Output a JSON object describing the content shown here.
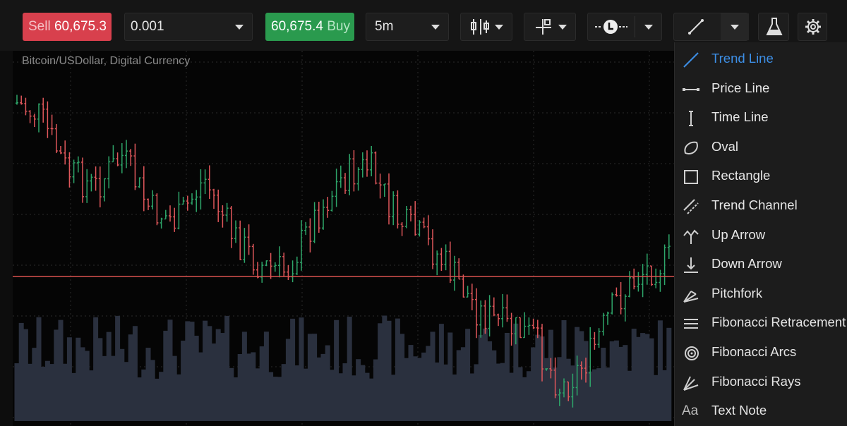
{
  "toolbar": {
    "sell_label": "Sell",
    "sell_price": "60,675.3",
    "quantity": "0.001",
    "buy_price": "60,675.4",
    "buy_label": "Buy",
    "timeframe": "5m"
  },
  "chart": {
    "title": "Bitcoin/USDollar, Digital Currency"
  },
  "menu": {
    "items": [
      {
        "label": "Trend Line",
        "active": true
      },
      {
        "label": "Price Line",
        "active": false
      },
      {
        "label": "Time Line",
        "active": false
      },
      {
        "label": "Oval",
        "active": false
      },
      {
        "label": "Rectangle",
        "active": false
      },
      {
        "label": "Trend Channel",
        "active": false
      },
      {
        "label": "Up Arrow",
        "active": false
      },
      {
        "label": "Down Arrow",
        "active": false
      },
      {
        "label": "Pitchfork",
        "active": false
      },
      {
        "label": "Fibonacci Retracement",
        "active": false
      },
      {
        "label": "Fibonacci Arcs",
        "active": false
      },
      {
        "label": "Fibonacci Rays",
        "active": false
      },
      {
        "label": "Text Note",
        "active": false,
        "icon_text": "Aa"
      }
    ]
  }
}
